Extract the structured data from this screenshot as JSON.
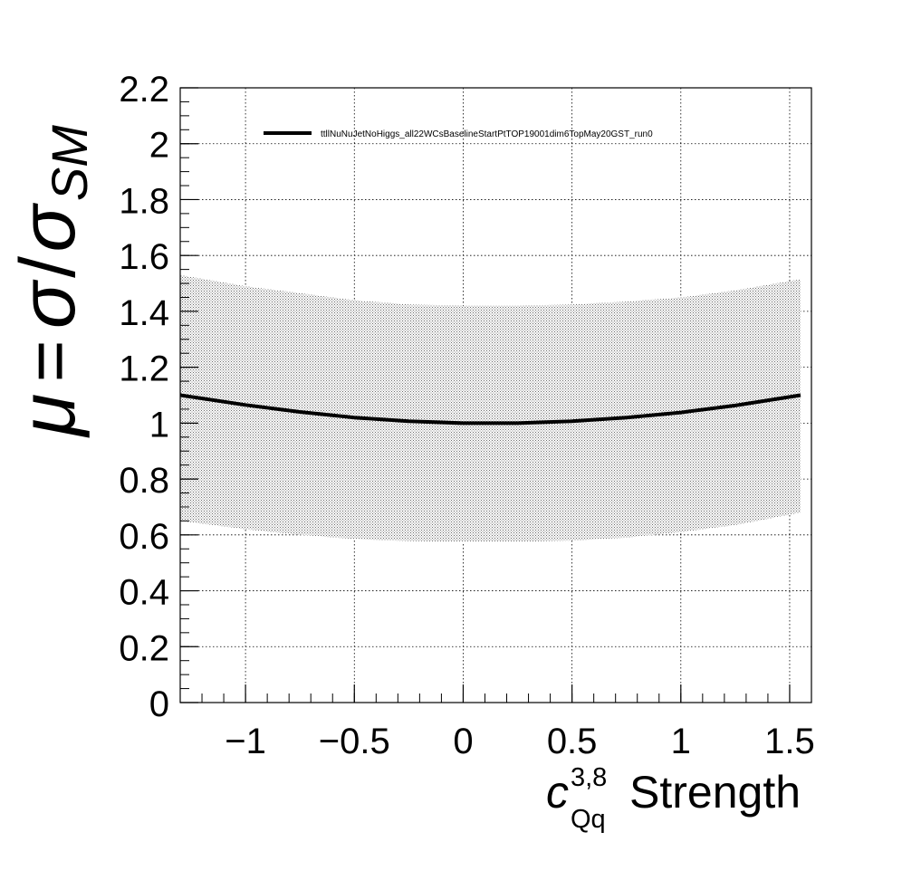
{
  "chart_data": {
    "type": "line",
    "xlim": [
      -1.3,
      1.6
    ],
    "ylim": [
      0,
      2.2
    ],
    "grid": true,
    "legend_position": "top",
    "xlabel": {
      "symbol": "c",
      "superscript": "3,8",
      "subscript": "Qq",
      "text": "Strength"
    },
    "ylabel": {
      "mu": "μ",
      "equals": "=",
      "sigma": "σ",
      "slash": "/",
      "sigma_sm": "σ",
      "sm_subscript": "SM"
    },
    "x_ticks": [
      {
        "value": -1,
        "label": "−1"
      },
      {
        "value": -0.5,
        "label": "−0.5"
      },
      {
        "value": 0,
        "label": "0"
      },
      {
        "value": 0.5,
        "label": "0.5"
      },
      {
        "value": 1,
        "label": "1"
      },
      {
        "value": 1.5,
        "label": "1.5"
      }
    ],
    "y_ticks": [
      {
        "value": 0,
        "label": "0"
      },
      {
        "value": 0.2,
        "label": "0.2"
      },
      {
        "value": 0.4,
        "label": "0.4"
      },
      {
        "value": 0.6,
        "label": "0.6"
      },
      {
        "value": 0.8,
        "label": "0.8"
      },
      {
        "value": 1,
        "label": "1"
      },
      {
        "value": 1.2,
        "label": "1.2"
      },
      {
        "value": 1.4,
        "label": "1.4"
      },
      {
        "value": 1.6,
        "label": "1.6"
      },
      {
        "value": 1.8,
        "label": "1.8"
      },
      {
        "value": 2,
        "label": "2"
      },
      {
        "value": 2.2,
        "label": "2.2"
      }
    ],
    "series": [
      {
        "name": "ttllNuNuJetNoHiggs_all22WCsBaselineStartPtTOP19001dim6TopMay20GST_run0",
        "color": "#000000",
        "x": [
          -1.3,
          -1.0,
          -0.75,
          -0.5,
          -0.25,
          0.0,
          0.25,
          0.5,
          0.75,
          1.0,
          1.25,
          1.55
        ],
        "y": [
          1.1,
          1.065,
          1.04,
          1.02,
          1.007,
          1.0,
          1.0,
          1.007,
          1.02,
          1.038,
          1.063,
          1.1
        ]
      }
    ],
    "band": {
      "color": "#bdbdbd",
      "x": [
        -1.3,
        -1.0,
        -0.75,
        -0.5,
        -0.25,
        0.0,
        0.25,
        0.5,
        0.75,
        1.0,
        1.25,
        1.55
      ],
      "upper": [
        1.53,
        1.49,
        1.465,
        1.44,
        1.425,
        1.42,
        1.42,
        1.425,
        1.435,
        1.45,
        1.475,
        1.515
      ],
      "lower": [
        0.65,
        0.62,
        0.6,
        0.585,
        0.578,
        0.575,
        0.575,
        0.58,
        0.59,
        0.61,
        0.635,
        0.68
      ]
    }
  }
}
